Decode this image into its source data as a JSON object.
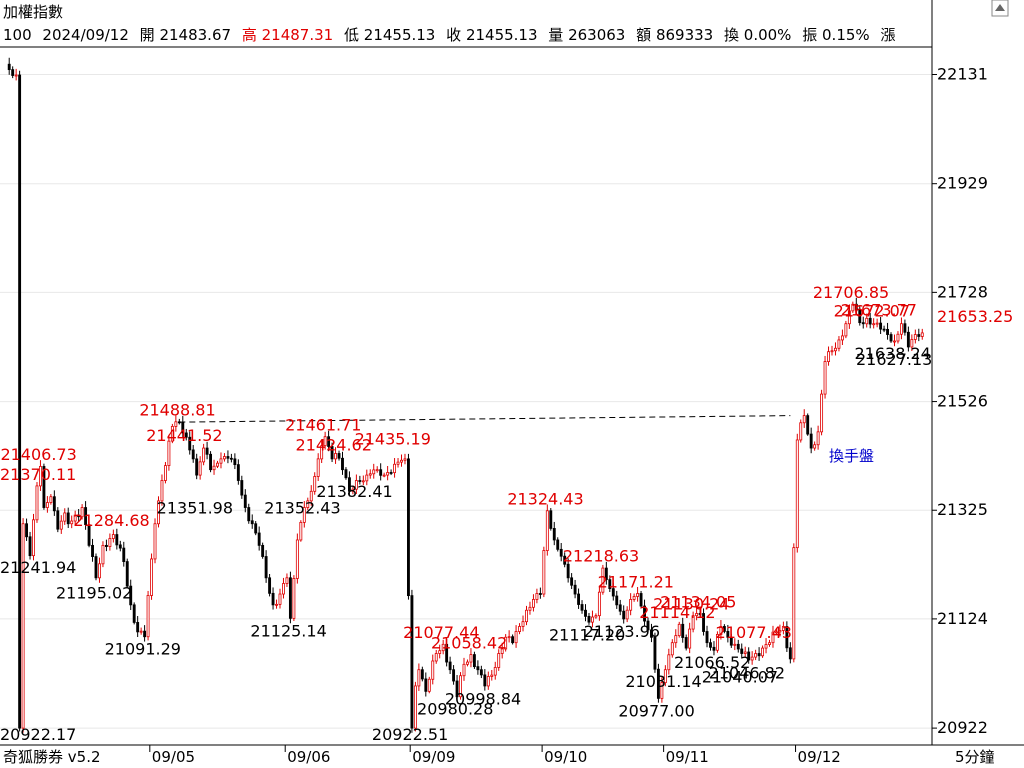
{
  "window": {
    "title": "加權指數",
    "software_label": "奇狐勝券 v5.2",
    "interval_label": "5分鐘"
  },
  "quote_bar": {
    "code": "100",
    "date": "2024/09/12",
    "open": {
      "label": "開",
      "value": "21483.67"
    },
    "high": {
      "label": "高",
      "value": "21487.31"
    },
    "low": {
      "label": "低",
      "value": "21455.13"
    },
    "close": {
      "label": "收",
      "value": "21455.13"
    },
    "volume": {
      "label": "量",
      "value": "263063"
    },
    "amount": {
      "label": "額",
      "value": "869333"
    },
    "turnover": {
      "label": "換",
      "value": "0.00%"
    },
    "amplitude": {
      "label": "振",
      "value": "0.15%"
    },
    "change": {
      "label": "漲",
      "value": ""
    }
  },
  "colors": {
    "up": "#e00000",
    "down": "#000000",
    "high_label": "#e00000",
    "low_label": "#000000",
    "annotation": "#0000cc",
    "grid": "#e8e8e8"
  },
  "chart_data": {
    "type": "candlestick",
    "ylim": [
      20900,
      22180
    ],
    "y_ticks": [
      20922,
      21124,
      21325,
      21526,
      21728,
      21929,
      22131
    ],
    "x_ticks": [
      {
        "label": "09/05",
        "day": "09/05"
      },
      {
        "label": "09/06",
        "day": "09/06"
      },
      {
        "label": "09/09",
        "day": "09/09"
      },
      {
        "label": "09/10",
        "day": "09/10"
      },
      {
        "label": "09/11",
        "day": "09/11"
      },
      {
        "label": "09/12",
        "day": "09/12"
      }
    ],
    "last_price": "21653.25",
    "annotation": "換手盤",
    "waypoints": [
      [
        0,
        22150
      ],
      [
        1,
        22140
      ],
      [
        3,
        22130
      ],
      [
        4,
        20922
      ],
      [
        5,
        21300
      ],
      [
        7,
        21241
      ],
      [
        9,
        21370
      ],
      [
        10,
        21406
      ],
      [
        11,
        21330
      ],
      [
        13,
        21350
      ],
      [
        15,
        21290
      ],
      [
        17,
        21320
      ],
      [
        18,
        21300
      ],
      [
        22,
        21330
      ],
      [
        24,
        21260
      ],
      [
        26,
        21200
      ],
      [
        28,
        21260
      ],
      [
        31,
        21280
      ],
      [
        34,
        21230
      ],
      [
        36,
        21150
      ],
      [
        38,
        21100
      ],
      [
        40,
        21091
      ],
      [
        43,
        21300
      ],
      [
        45,
        21380
      ],
      [
        48,
        21480
      ],
      [
        50,
        21488
      ],
      [
        52,
        21460
      ],
      [
        54,
        21420
      ],
      [
        55,
        21390
      ],
      [
        57,
        21440
      ],
      [
        59,
        21400
      ],
      [
        62,
        21420
      ],
      [
        65,
        21420
      ],
      [
        67,
        21380
      ],
      [
        69,
        21330
      ],
      [
        71,
        21300
      ],
      [
        73,
        21260
      ],
      [
        75,
        21200
      ],
      [
        77,
        21150
      ],
      [
        79,
        21170
      ],
      [
        81,
        21200
      ],
      [
        82,
        21125
      ],
      [
        84,
        21270
      ],
      [
        86,
        21330
      ],
      [
        88,
        21360
      ],
      [
        90,
        21420
      ],
      [
        92,
        21461
      ],
      [
        94,
        21420
      ],
      [
        95,
        21430
      ],
      [
        97,
        21400
      ],
      [
        99,
        21360
      ],
      [
        101,
        21380
      ],
      [
        104,
        21390
      ],
      [
        107,
        21400
      ],
      [
        109,
        21390
      ],
      [
        112,
        21410
      ],
      [
        115,
        21420
      ],
      [
        117,
        20922
      ],
      [
        118,
        21000
      ],
      [
        119,
        21030
      ],
      [
        121,
        20990
      ],
      [
        124,
        21060
      ],
      [
        126,
        21077
      ],
      [
        128,
        21030
      ],
      [
        130,
        20980
      ],
      [
        132,
        21040
      ],
      [
        134,
        21058
      ],
      [
        136,
        21030
      ],
      [
        138,
        21000
      ],
      [
        140,
        21020
      ],
      [
        142,
        21060
      ],
      [
        144,
        21090
      ],
      [
        146,
        21080
      ],
      [
        148,
        21110
      ],
      [
        150,
        21140
      ],
      [
        152,
        21160
      ],
      [
        154,
        21170
      ],
      [
        156,
        21324
      ],
      [
        158,
        21270
      ],
      [
        160,
        21240
      ],
      [
        162,
        21200
      ],
      [
        164,
        21170
      ],
      [
        166,
        21140
      ],
      [
        168,
        21118
      ],
      [
        170,
        21130
      ],
      [
        172,
        21218
      ],
      [
        174,
        21180
      ],
      [
        176,
        21150
      ],
      [
        178,
        21124
      ],
      [
        180,
        21160
      ],
      [
        182,
        21171
      ],
      [
        184,
        21120
      ],
      [
        186,
        21090
      ],
      [
        188,
        20977
      ],
      [
        190,
        21030
      ],
      [
        192,
        21080
      ],
      [
        194,
        21114
      ],
      [
        196,
        21070
      ],
      [
        198,
        21130
      ],
      [
        200,
        21134
      ],
      [
        202,
        21080
      ],
      [
        204,
        21066
      ],
      [
        206,
        21110
      ],
      [
        208,
        21090
      ],
      [
        210,
        21077
      ],
      [
        212,
        21060
      ],
      [
        214,
        21048
      ],
      [
        216,
        21060
      ],
      [
        218,
        21070
      ],
      [
        220,
        21080
      ],
      [
        222,
        21100
      ],
      [
        224,
        21110
      ],
      [
        226,
        21050
      ],
      [
        228,
        21455
      ],
      [
        230,
        21500
      ],
      [
        232,
        21440
      ],
      [
        234,
        21470
      ],
      [
        236,
        21600
      ],
      [
        238,
        21620
      ],
      [
        240,
        21640
      ],
      [
        242,
        21670
      ],
      [
        244,
        21706
      ],
      [
        246,
        21672
      ],
      [
        248,
        21680
      ],
      [
        250,
        21670
      ],
      [
        252,
        21660
      ],
      [
        254,
        21650
      ],
      [
        256,
        21638
      ],
      [
        258,
        21670
      ],
      [
        260,
        21627
      ],
      [
        262,
        21650
      ],
      [
        264,
        21653
      ]
    ],
    "candle_count": 265,
    "day_boundaries": [
      0,
      42,
      81,
      117,
      155,
      190,
      228
    ],
    "high_labels": [
      {
        "value": "21406.73",
        "i": 10
      },
      {
        "value": "21370.11",
        "i": 9
      },
      {
        "value": "21284.68",
        "i": 31
      },
      {
        "value": "21488.81",
        "i": 50
      },
      {
        "value": "21441.52",
        "i": 52
      },
      {
        "value": "21461.71",
        "i": 92
      },
      {
        "value": "21424.62",
        "i": 95
      },
      {
        "value": "21435.19",
        "i": 112
      },
      {
        "value": "21324.43",
        "i": 156
      },
      {
        "value": "21218.63",
        "i": 172
      },
      {
        "value": "21171.21",
        "i": 182
      },
      {
        "value": "21077.44",
        "i": 126
      },
      {
        "value": "21058.42",
        "i": 134
      },
      {
        "value": "21114.12",
        "i": 194
      },
      {
        "value": "21130.24",
        "i": 198
      },
      {
        "value": "21134.05",
        "i": 200
      },
      {
        "value": "21077.43",
        "i": 216
      },
      {
        "value": "21706.85",
        "i": 244
      },
      {
        "value": "21672.07",
        "i": 250
      },
      {
        "value": "21673.77",
        "i": 252
      }
    ],
    "low_labels": [
      {
        "value": "20922.17",
        "i": 4
      },
      {
        "value": "21241.94",
        "i": 7
      },
      {
        "value": "21195.02",
        "i": 26
      },
      {
        "value": "21091.29",
        "i": 40
      },
      {
        "value": "21351.98",
        "i": 55
      },
      {
        "value": "21125.14",
        "i": 82
      },
      {
        "value": "21352.43",
        "i": 86
      },
      {
        "value": "21382.41",
        "i": 101
      },
      {
        "value": "20922.51",
        "i": 117
      },
      {
        "value": "20980.28",
        "i": 130
      },
      {
        "value": "20998.84",
        "i": 138
      },
      {
        "value": "21117.20",
        "i": 168
      },
      {
        "value": "21123.96",
        "i": 178
      },
      {
        "value": "20977.00",
        "i": 188
      },
      {
        "value": "21031.14",
        "i": 190
      },
      {
        "value": "21066.52",
        "i": 204
      },
      {
        "value": "21040.07",
        "i": 212
      },
      {
        "value": "21046.82",
        "i": 214
      },
      {
        "value": "21638.24",
        "i": 256
      },
      {
        "value": "21627.13",
        "i": 260
      }
    ]
  }
}
